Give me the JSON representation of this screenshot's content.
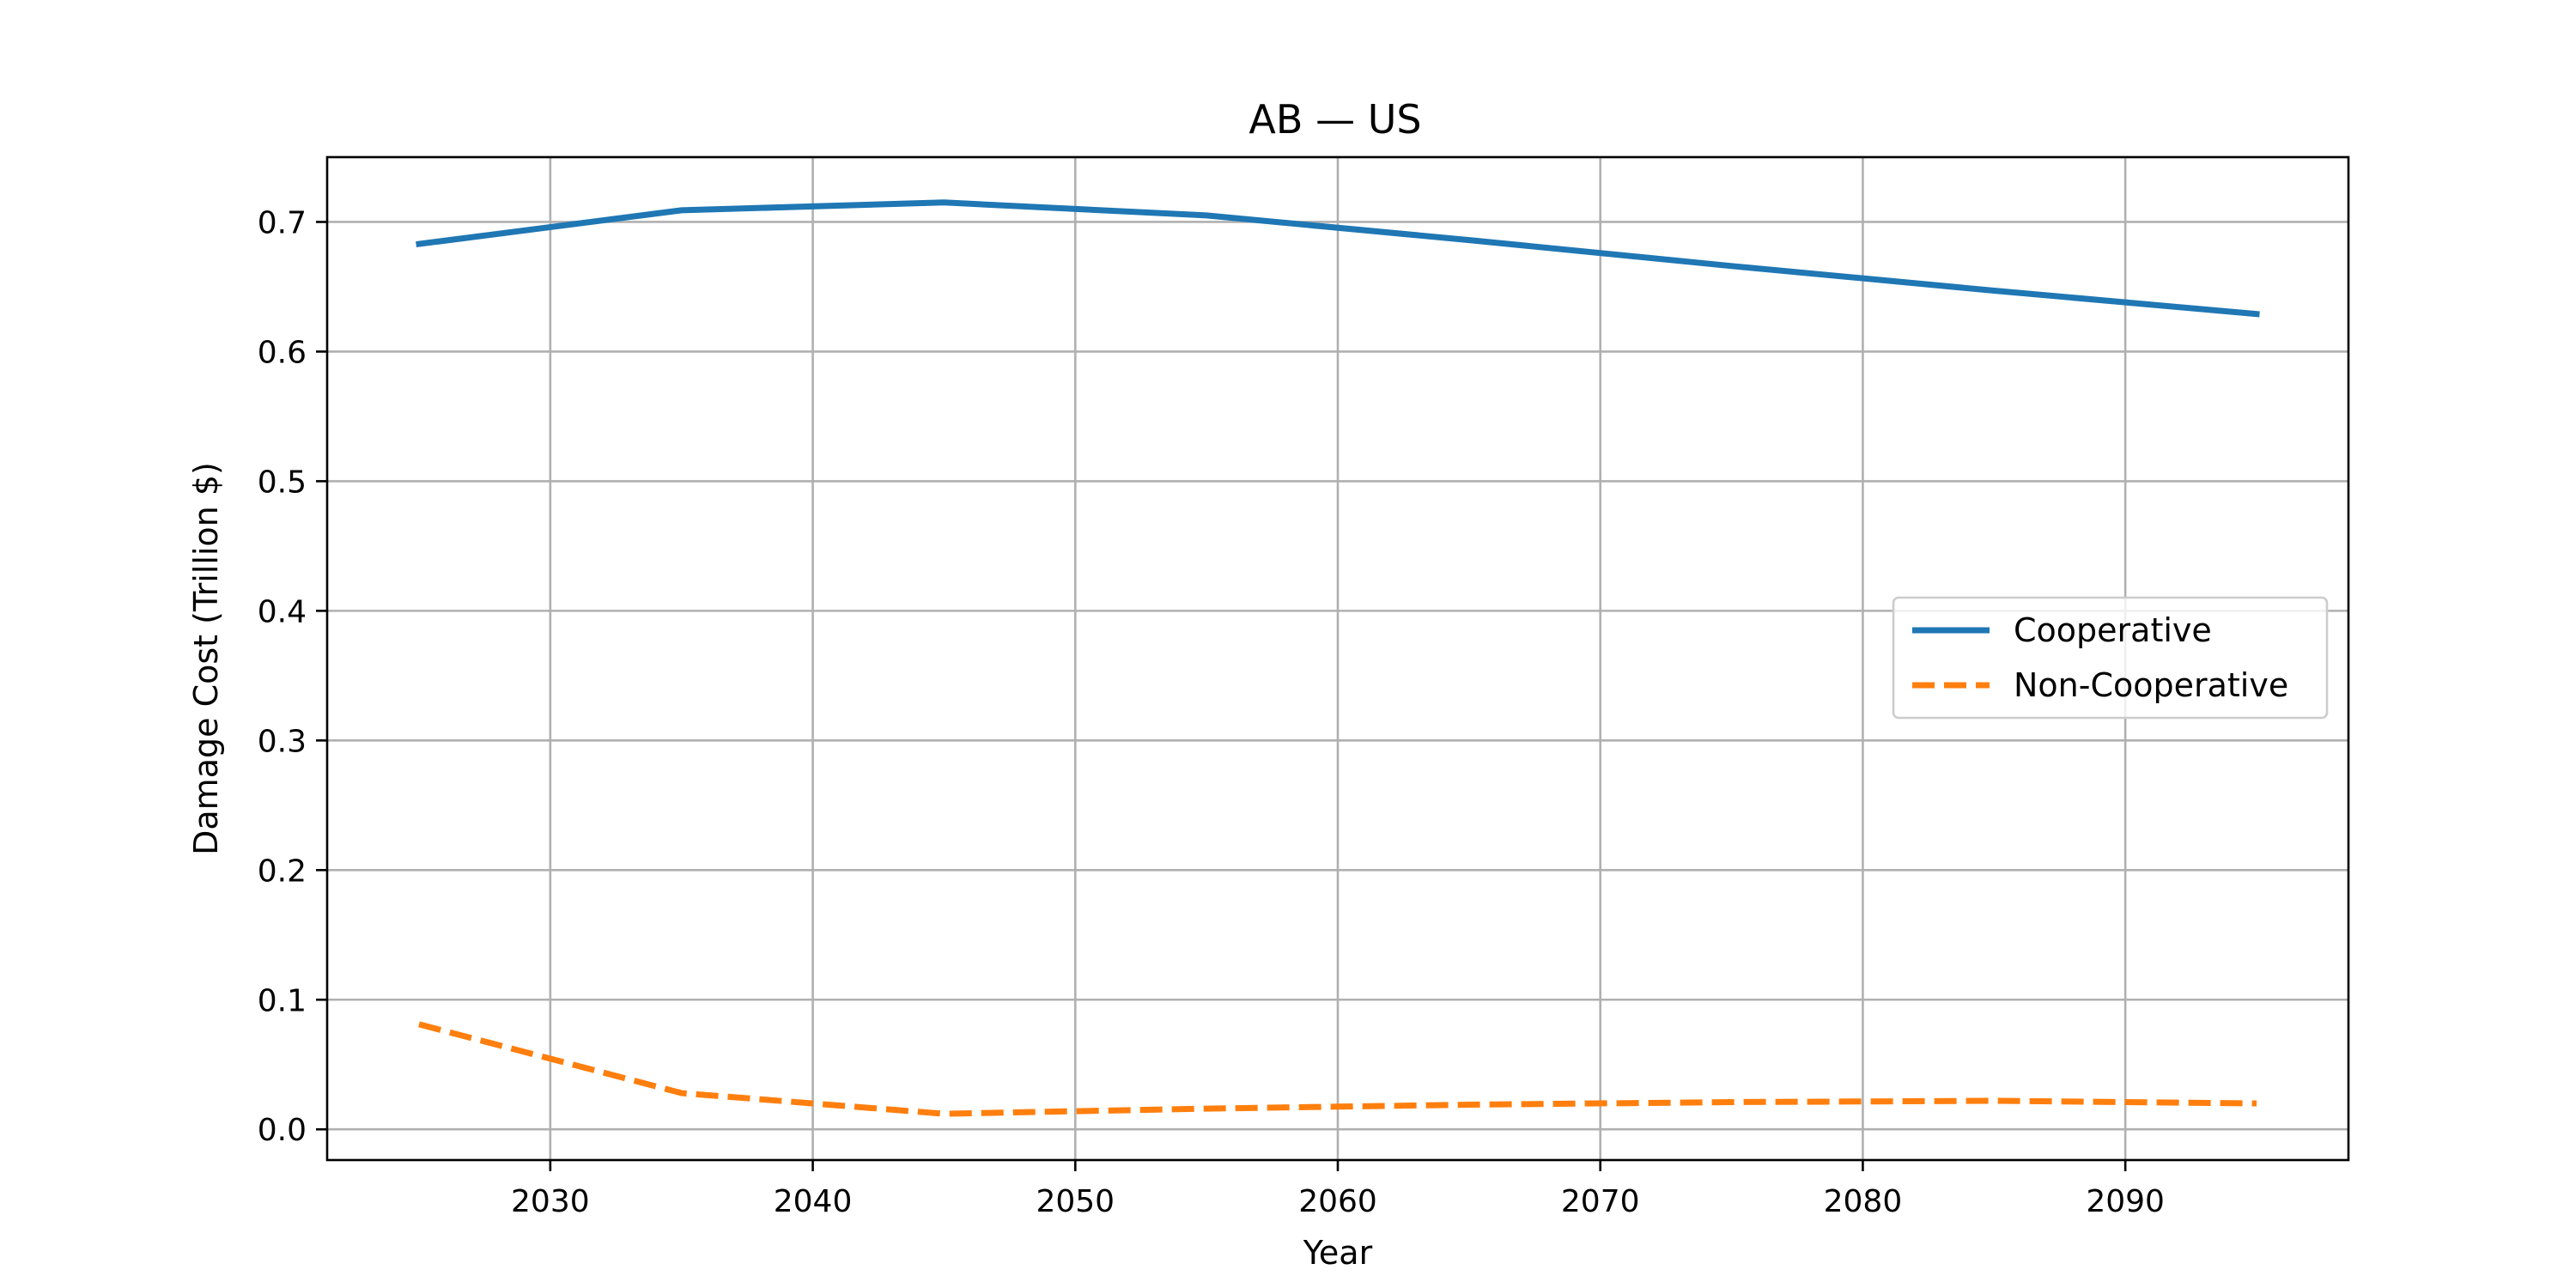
{
  "chart_data": {
    "type": "line",
    "title": "AB — US",
    "xlabel": "Year",
    "ylabel": "Damage Cost (Trillion $)",
    "xlim": [
      2021.5,
      2098.5
    ],
    "ylim": [
      -0.0237,
      0.75
    ],
    "xticks": [
      2030,
      2040,
      2050,
      2060,
      2070,
      2080,
      2090
    ],
    "yticks": [
      0.0,
      0.1,
      0.2,
      0.3,
      0.4,
      0.5,
      0.6,
      0.7
    ],
    "grid": true,
    "legend_position": "center-right",
    "x": [
      2025,
      2035,
      2045,
      2055,
      2065,
      2075,
      2085,
      2095
    ],
    "series": [
      {
        "name": "Cooperative",
        "color": "#1f77b4",
        "style": "solid",
        "values": [
          0.683,
          0.709,
          0.715,
          0.705,
          0.686,
          0.666,
          0.647,
          0.629
        ]
      },
      {
        "name": "Non-Cooperative",
        "color": "#ff7f0e",
        "style": "dashed",
        "values": [
          0.081,
          0.028,
          0.012,
          0.016,
          0.019,
          0.021,
          0.022,
          0.02
        ]
      }
    ]
  }
}
